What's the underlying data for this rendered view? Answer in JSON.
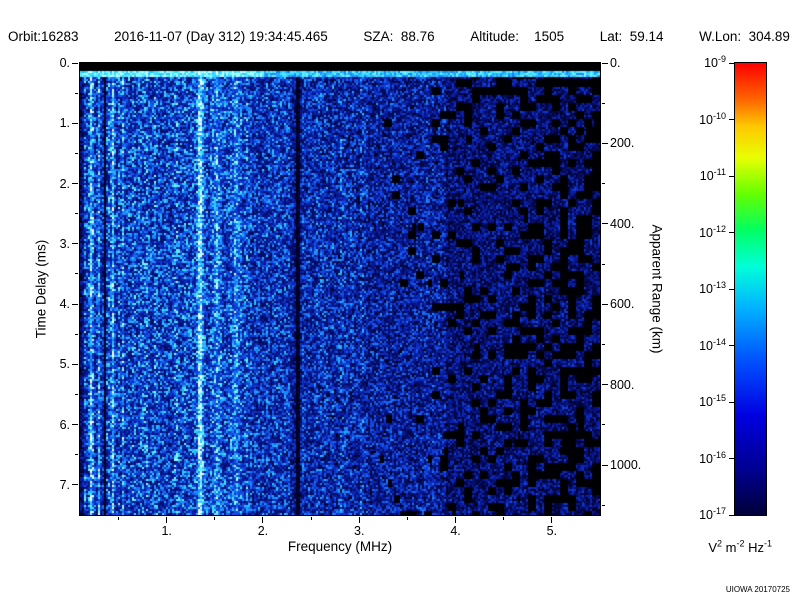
{
  "header": {
    "orbit": "Orbit:16283",
    "datetime": "2016-11-07 (Day 312) 19:34:45.465",
    "sza": "SZA:  88.76",
    "altitude": "Altitude:    1505",
    "lat": "Lat:  59.14",
    "wlon": "W.Lon:  304.89"
  },
  "footer": {
    "credit": "UIOWA 20170725"
  },
  "chart_data": {
    "type": "heatmap",
    "title": "",
    "xlabel": "Frequency (MHz)",
    "ylabel": "Time Delay (ms)",
    "ylabel_right": "Apparent Range (km)",
    "x_range_mhz": [
      0.1,
      5.5
    ],
    "x_ticks": [
      {
        "value": 1,
        "label": "1."
      },
      {
        "value": 2,
        "label": "2."
      },
      {
        "value": 3,
        "label": "3."
      },
      {
        "value": 4,
        "label": "4."
      },
      {
        "value": 5,
        "label": "5."
      }
    ],
    "x_minor_ticks": [
      0.5,
      1.5,
      2.5,
      3.5,
      4.5
    ],
    "y_range_ms": [
      0,
      7.5
    ],
    "y_ticks": [
      {
        "value": 0,
        "label": "0."
      },
      {
        "value": 1,
        "label": "1."
      },
      {
        "value": 2,
        "label": "2."
      },
      {
        "value": 3,
        "label": "3."
      },
      {
        "value": 4,
        "label": "4."
      },
      {
        "value": 5,
        "label": "5."
      },
      {
        "value": 6,
        "label": "6."
      },
      {
        "value": 7,
        "label": "7."
      }
    ],
    "y_minor_ticks": [
      0.5,
      1.5,
      2.5,
      3.5,
      4.5,
      5.5,
      6.5
    ],
    "right_axis_km_max": 1124,
    "right_ticks": [
      {
        "value": 0,
        "label": "0."
      },
      {
        "value": 200,
        "label": "200."
      },
      {
        "value": 400,
        "label": "400."
      },
      {
        "value": 600,
        "label": "600."
      },
      {
        "value": 800,
        "label": "800."
      },
      {
        "value": 1000,
        "label": "1000."
      }
    ],
    "right_minor_ticks": [
      100,
      300,
      500,
      700,
      900,
      1100
    ],
    "colorbar": {
      "scale": "log",
      "mantissa": "10",
      "tick_exponents": [
        "-9",
        "-10",
        "-11",
        "-12",
        "-13",
        "-14",
        "-15",
        "-16",
        "-17"
      ],
      "unit_parts": [
        {
          "base": "V",
          "exp": "2"
        },
        {
          "base": " m",
          "exp": "-2"
        },
        {
          "base": " Hz",
          "exp": "-1"
        }
      ],
      "gradient_stops": [
        {
          "pct": 0,
          "color": "#000038"
        },
        {
          "pct": 10,
          "color": "#000090"
        },
        {
          "pct": 22,
          "color": "#0000e0"
        },
        {
          "pct": 34,
          "color": "#0050ff"
        },
        {
          "pct": 46,
          "color": "#00b4ff"
        },
        {
          "pct": 55,
          "color": "#00ffd8"
        },
        {
          "pct": 63,
          "color": "#00ff64"
        },
        {
          "pct": 71,
          "color": "#64ff00"
        },
        {
          "pct": 79,
          "color": "#e8ff00"
        },
        {
          "pct": 86,
          "color": "#ffc800"
        },
        {
          "pct": 92,
          "color": "#ff6400"
        },
        {
          "pct": 100,
          "color": "#ff0000"
        }
      ]
    },
    "heatmap_stops": [
      {
        "t": 0.0,
        "rgb": [
          0,
          0,
          0
        ]
      },
      {
        "t": 0.06,
        "rgb": [
          2,
          2,
          40
        ]
      },
      {
        "t": 0.18,
        "rgb": [
          6,
          16,
          120
        ]
      },
      {
        "t": 0.32,
        "rgb": [
          12,
          40,
          190
        ]
      },
      {
        "t": 0.48,
        "rgb": [
          20,
          90,
          240
        ]
      },
      {
        "t": 0.62,
        "rgb": [
          30,
          160,
          255
        ]
      },
      {
        "t": 0.75,
        "rgb": [
          60,
          225,
          255
        ]
      },
      {
        "t": 0.88,
        "rgb": [
          150,
          255,
          255
        ]
      },
      {
        "t": 1.0,
        "rgb": [
          240,
          255,
          255
        ]
      }
    ],
    "features": {
      "seed": 20170725,
      "top_black_band_ms": 0.12,
      "surface_echo_ms_end": 0.24,
      "bright_lines": [
        {
          "f": 0.22,
          "w": 0.014,
          "a": 0.5
        },
        {
          "f": 0.3,
          "w": 0.01,
          "a": 0.3
        },
        {
          "f": 0.44,
          "w": 0.014,
          "a": 0.42
        },
        {
          "f": 0.55,
          "w": 0.01,
          "a": 0.22
        },
        {
          "f": 1.35,
          "w": 0.028,
          "a": 0.55
        },
        {
          "f": 1.52,
          "w": 0.045,
          "a": 0.2
        },
        {
          "f": 1.72,
          "w": 0.04,
          "a": 0.22
        }
      ],
      "dark_lines": [
        {
          "f": 0.12,
          "w": 0.02,
          "d": 0.7
        },
        {
          "f": 0.36,
          "w": 0.012,
          "d": 0.82
        },
        {
          "f": 2.36,
          "w": 0.03,
          "d": 0.93
        }
      ],
      "black_patch_start_mhz": 3.2
    }
  }
}
